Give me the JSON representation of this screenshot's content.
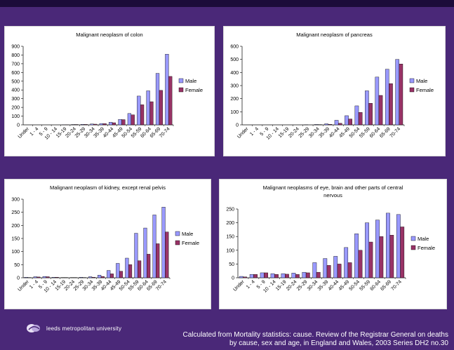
{
  "colors": {
    "male": "#9999ff",
    "female": "#993366",
    "background": "#4a2878"
  },
  "age_groups": [
    "Under",
    "1 - 4",
    "5 - 9",
    "10 - 14",
    "15-19",
    "20-24",
    "25-29",
    "30-34",
    "35-39",
    "40-44",
    "45-49",
    "50-54",
    "55-59",
    "60-64",
    "65-69",
    "70-74"
  ],
  "chart_data": [
    {
      "type": "bar",
      "title": "Malignant neoplasm of colon",
      "title_lines": [
        "Malignant neoplasm of colon"
      ],
      "categories": [
        "Under",
        "1 - 4",
        "5 - 9",
        "10 - 14",
        "15-19",
        "20-24",
        "25-29",
        "30-34",
        "35-39",
        "40-44",
        "45-49",
        "50-54",
        "55-59",
        "60-64",
        "65-69",
        "70-74"
      ],
      "series": [
        {
          "name": "Male",
          "values": [
            0,
            0,
            0,
            0,
            1,
            4,
            6,
            10,
            15,
            30,
            62,
            130,
            330,
            390,
            590,
            810
          ]
        },
        {
          "name": "Female",
          "values": [
            0,
            0,
            0,
            0,
            1,
            4,
            5,
            8,
            14,
            24,
            60,
            115,
            230,
            265,
            395,
            555
          ]
        }
      ],
      "ylim": [
        0,
        900
      ],
      "yticks": [
        0,
        100,
        200,
        300,
        400,
        500,
        600,
        700,
        800,
        900
      ],
      "legend": "right"
    },
    {
      "type": "bar",
      "title": "Malignant neoplasm of pancreas",
      "title_lines": [
        "Malignant neoplasm of pancreas"
      ],
      "categories": [
        "Under",
        "1 - 4",
        "5 - 9",
        "10 - 14",
        "15-19",
        "20-24",
        "25-29",
        "30-34",
        "35-39",
        "40-44",
        "45-49",
        "50-54",
        "55-59",
        "60-64",
        "65-69",
        "70-74"
      ],
      "series": [
        {
          "name": "Male",
          "values": [
            0,
            0,
            0,
            0,
            0,
            0,
            1,
            3,
            8,
            35,
            70,
            145,
            260,
            365,
            425,
            500
          ]
        },
        {
          "name": "Female",
          "values": [
            0,
            0,
            0,
            0,
            0,
            0,
            0,
            2,
            4,
            12,
            45,
            95,
            165,
            225,
            315,
            465
          ]
        }
      ],
      "ylim": [
        0,
        600
      ],
      "yticks": [
        0,
        100,
        200,
        300,
        400,
        500,
        600
      ],
      "legend": "right"
    },
    {
      "type": "bar",
      "title": "Malignant neoplasm of kidney, except renal pelvis",
      "title_lines": [
        "Malignant neoplasm of kidney, except renal pelvis"
      ],
      "categories": [
        "Under",
        "1 - 4",
        "5 - 9",
        "10 - 14",
        "15-19",
        "20-24",
        "25-29",
        "30-34",
        "35-39",
        "40-44",
        "45-49",
        "50-54",
        "55-59",
        "60-64",
        "65-69",
        "70-74"
      ],
      "series": [
        {
          "name": "Male",
          "values": [
            2,
            4,
            5,
            2,
            1,
            1,
            2,
            4,
            10,
            28,
            55,
            75,
            170,
            190,
            240,
            270
          ]
        },
        {
          "name": "Female",
          "values": [
            1,
            3,
            4,
            2,
            1,
            1,
            1,
            2,
            5,
            15,
            25,
            50,
            65,
            90,
            130,
            175
          ]
        }
      ],
      "ylim": [
        0,
        300
      ],
      "yticks": [
        0,
        50,
        100,
        150,
        200,
        250,
        300
      ],
      "legend": "right"
    },
    {
      "type": "bar",
      "title": "Malignant neoplasms of eye, brain and other parts of central nervous",
      "title_lines": [
        "Malignant neoplasms of eye, brain and other parts of central",
        "nervous"
      ],
      "categories": [
        "Under",
        "1 - 4",
        "5 - 9",
        "10 - 14",
        "15-19",
        "20-24",
        "25-29",
        "30-34",
        "35-39",
        "40-44",
        "45-49",
        "50-54",
        "55-59",
        "60-64",
        "65-69",
        "70-74"
      ],
      "series": [
        {
          "name": "Male",
          "values": [
            5,
            12,
            18,
            15,
            15,
            17,
            20,
            55,
            70,
            78,
            110,
            160,
            200,
            210,
            235,
            230
          ]
        },
        {
          "name": "Female",
          "values": [
            3,
            12,
            18,
            12,
            13,
            12,
            18,
            20,
            45,
            50,
            55,
            100,
            130,
            150,
            155,
            185
          ]
        }
      ],
      "ylim": [
        0,
        250
      ],
      "yticks": [
        0,
        50,
        100,
        150,
        200,
        250
      ],
      "legend": "right"
    }
  ],
  "footer": {
    "line1": "Calculated from Mortality statistics: cause. Review of the Registrar General on deaths",
    "line2": "by cause, sex and age, in England and Wales, 2003 Series DH2 no.30"
  },
  "logo": {
    "text": "leeds metropolitan university",
    "icon": "university-logo-icon"
  }
}
